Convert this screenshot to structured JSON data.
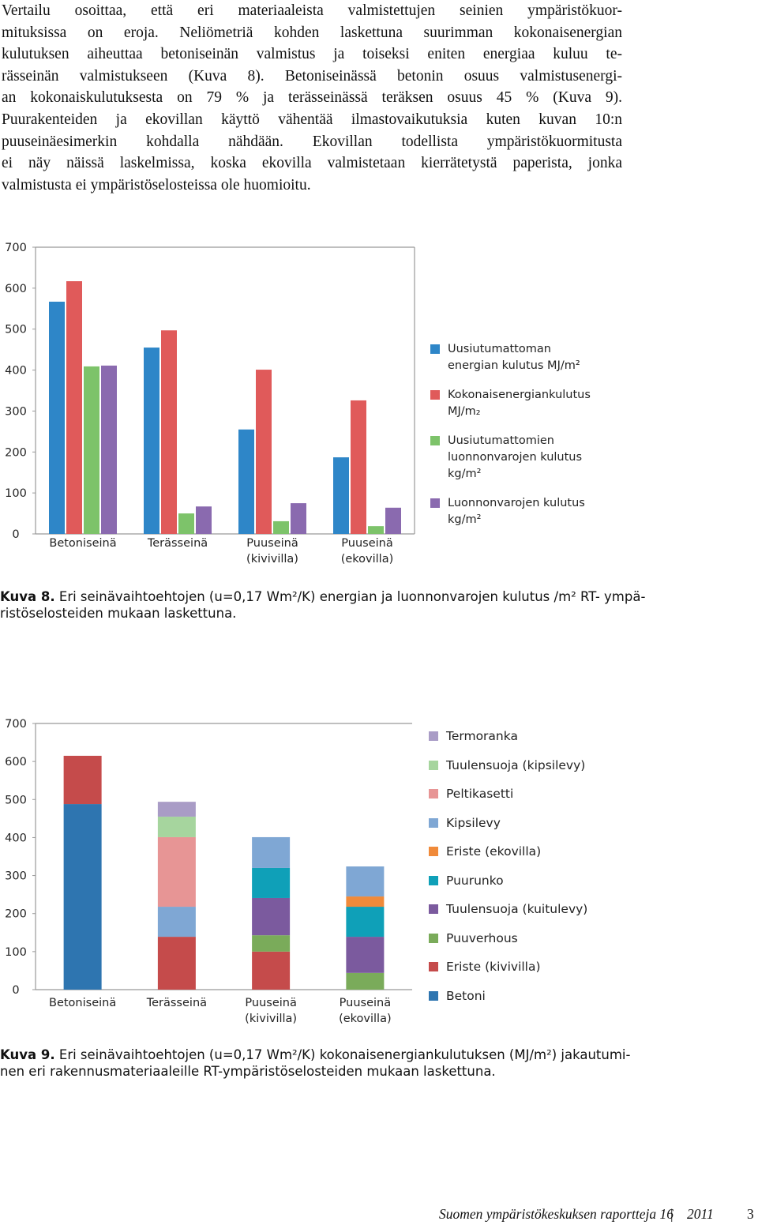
{
  "body_text": [
    "Vertailu osoittaa, että eri materiaaleista valmistettujen seinien ympäristökuor-",
    "mituksissa on eroja. Neliömetriä kohden laskettuna suurimman kokonaisenergian",
    "kulutuksen aiheuttaa betoniseinän valmistus ja toiseksi eniten energiaa kuluu te-",
    "rässeinän valmistukseen (Kuva 8). Betoniseinässä betonin osuus valmistusenergi-",
    "an kokonaiskulutuksesta on 79 % ja terässeinässä teräksen osuus 45 % (Kuva 9).",
    "Puurakenteiden ja ekovillan käyttö vähentää ilmastovaikutuksia kuten kuvan 10:n",
    "puuseinäesimerkin kohdalla nähdään. Ekovillan todellista ympäristökuormitusta",
    "ei näy näissä laskelmissa, koska ekovilla valmistetaan kierrätetystä paperista, jonka",
    "valmistusta ei ympäristöselosteissa ole huomioitu."
  ],
  "chart_data": [
    {
      "type": "bar",
      "categories": [
        "Betoniseinä",
        "Terässeinä",
        "Puuseinä (kivivilla)",
        "Puuseinä (ekovilla)"
      ],
      "series": [
        {
          "name": "Uusiutumattoman energian kulutus MJ/m²",
          "color": "#2e86c8",
          "values": [
            567,
            455,
            255,
            187
          ]
        },
        {
          "name": "Kokonaisenergiankulutus MJ/m₂",
          "color": "#e05a5a",
          "values": [
            617,
            497,
            401,
            326
          ]
        },
        {
          "name": "Uusiutumattomien luonnonvarojen kulutus kg/m²",
          "color": "#7dc36a",
          "values": [
            409,
            50,
            31,
            19
          ]
        },
        {
          "name": "Luonnonvarojen kulutus kg/m²",
          "color": "#8a6aaf",
          "values": [
            411,
            67,
            75,
            64
          ]
        }
      ],
      "ylim": [
        0,
        700
      ],
      "yticks": [
        0,
        100,
        200,
        300,
        400,
        500,
        600,
        700
      ],
      "grid": false,
      "legend": "right"
    },
    {
      "type": "stacked_bar",
      "categories": [
        "Betoniseinä",
        "Terässeinä",
        "Puuseinä (kivivilla)",
        "Puuseinä (ekovilla)"
      ],
      "series": [
        {
          "name": "Betoni",
          "color": "#2e75b0",
          "values": [
            488,
            null,
            null,
            null
          ]
        },
        {
          "name": "Eriste (kivivilla)",
          "color": "#c54b4b",
          "values": [
            127,
            139,
            100,
            null
          ]
        },
        {
          "name": "Puuverhous",
          "color": "#7aab5a",
          "values": [
            null,
            null,
            43,
            44
          ]
        },
        {
          "name": "Tuulensuoja (kuitulevy)",
          "color": "#7b5a9e",
          "values": [
            null,
            null,
            98,
            95
          ]
        },
        {
          "name": "Puurunko",
          "color": "#0fa0b8",
          "values": [
            null,
            null,
            79,
            79
          ]
        },
        {
          "name": "Eriste (ekovilla)",
          "color": "#f08a3a",
          "values": [
            null,
            null,
            null,
            27
          ]
        },
        {
          "name": "Kipsilevy",
          "color": "#7fa7d4",
          "values": [
            null,
            79,
            81,
            79
          ]
        },
        {
          "name": "Peltikasetti",
          "color": "#e79595",
          "values": [
            null,
            183,
            null,
            null
          ]
        },
        {
          "name": "Tuulensuoja (kipsilevy)",
          "color": "#a6d59e",
          "values": [
            null,
            54,
            null,
            null
          ]
        },
        {
          "name": "Termoranka",
          "color": "#a99cc6",
          "values": [
            null,
            39,
            null,
            null
          ]
        }
      ],
      "ylim": [
        0,
        700
      ],
      "yticks": [
        0,
        100,
        200,
        300,
        400,
        500,
        600,
        700
      ],
      "grid": false,
      "legend": "right"
    }
  ],
  "captions": [
    {
      "label": "Kuva 8.",
      "lines": [
        "Eri seinävaihtoehtojen (u=0,17 Wm²/K) energian ja luonnonvarojen kulutus /m² RT- ympä-",
        "ristöselosteiden mukaan laskettuna."
      ]
    },
    {
      "label": "Kuva 9.",
      "lines": [
        "Eri seinävaihtoehtojen (u=0,17 Wm²/K) kokonaisenergiankulutuksen (MJ/m²) jakautumi-",
        "nen eri rakennusmateriaaleille RT-ympäristöselosteiden mukaan laskettuna."
      ]
    }
  ],
  "footer": {
    "series": "Suomen ympäristökeskuksen raportteja 16",
    "year": "2011",
    "page": "3"
  }
}
